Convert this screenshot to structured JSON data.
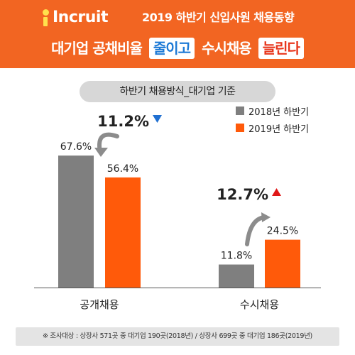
{
  "header": {
    "logo_text": "Incruit",
    "title": "2019 하반기 신입사원 채용동향",
    "headline_part1": "대기업 공채비율",
    "headline_box1": "줄이고",
    "headline_part2": "수시채용",
    "headline_box2": "늘린다"
  },
  "subtitle": "하반기 채용방식_대기업 기준",
  "colors": {
    "brand": "#f26522",
    "series_2018": "#7f7f7f",
    "series_2019": "#ff5a0a",
    "down_arrow": "#1f6fd1",
    "up_arrow": "#e01818",
    "curve_arrow": "#8c8c8c"
  },
  "chart_data": {
    "type": "bar",
    "categories": [
      "공개채용",
      "수시채용"
    ],
    "series": [
      {
        "name": "2018년 하반기",
        "values": [
          67.6,
          11.8
        ],
        "labels": [
          "67.6%",
          "11.8%"
        ]
      },
      {
        "name": "2019년 하반기",
        "values": [
          56.4,
          24.5
        ],
        "labels": [
          "56.4%",
          "24.5%"
        ]
      }
    ],
    "annotations": [
      {
        "text": "11.2%",
        "direction": "down",
        "category": "공개채용"
      },
      {
        "text": "12.7%",
        "direction": "up",
        "category": "수시채용"
      }
    ],
    "legend_position": "top-right",
    "grid": false,
    "ylim": [
      0,
      100
    ]
  },
  "footer": "※ 조사대상 : 상장사 571곳 중 대기업 190곳(2018년) / 상장사 699곳 중 대기업 186곳(2019년)"
}
